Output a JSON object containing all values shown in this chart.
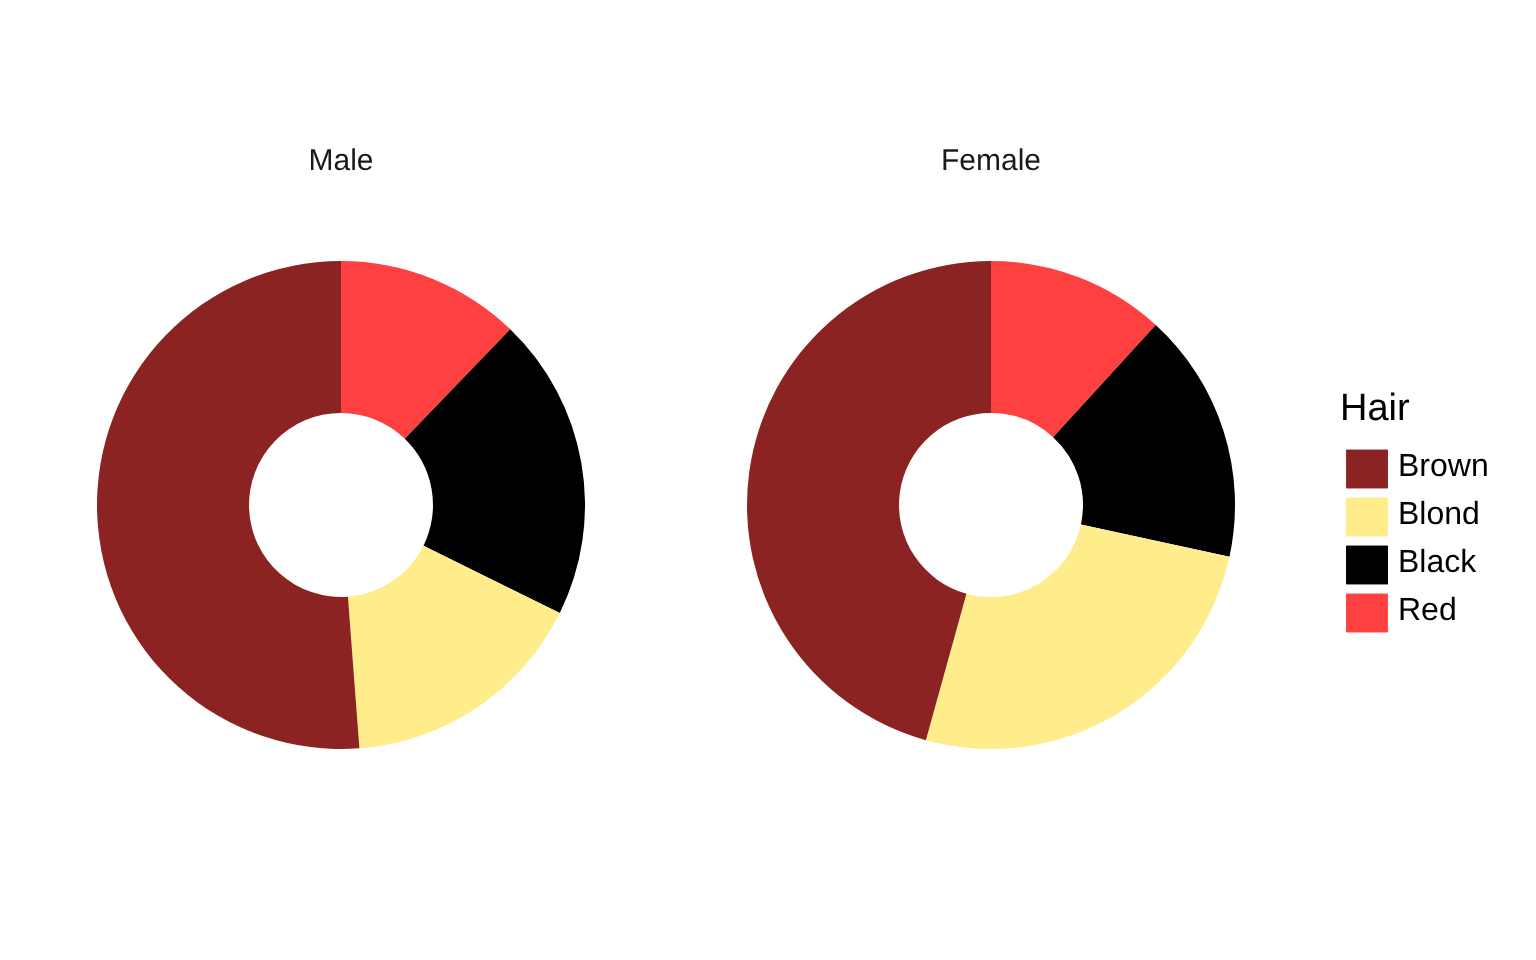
{
  "chart_data": {
    "type": "donut",
    "categories": [
      "Brown",
      "Blond",
      "Black",
      "Red"
    ],
    "colors": [
      "#8b2323",
      "#ffec8b",
      "#000000",
      "#ff4040"
    ],
    "series": [
      {
        "name": "Male",
        "values": [
          51.2,
          16.5,
          20.1,
          12.2
        ]
      },
      {
        "name": "Female",
        "values": [
          45.7,
          25.9,
          16.6,
          11.8
        ]
      }
    ],
    "legend": "right",
    "legend_title": "Hair"
  }
}
